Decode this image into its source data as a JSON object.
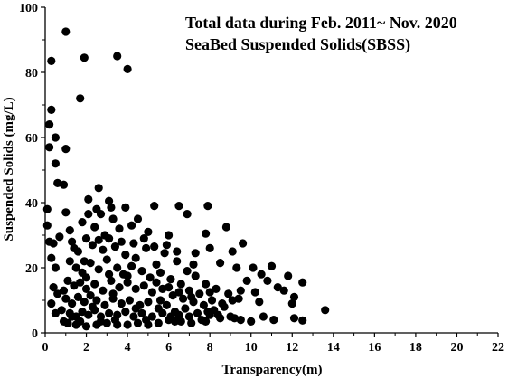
{
  "chart_data": {
    "type": "scatter",
    "annotations": [
      "Total data during Feb. 2011~ Nov. 2020",
      "SeaBed Suspended Solids(SBSS)"
    ],
    "xlabel": "Transparency(m)",
    "ylabel": "Suspended Solids (mg/L)",
    "xlim": [
      0,
      22
    ],
    "ylim": [
      0,
      100
    ],
    "xticks": [
      0,
      2,
      4,
      6,
      8,
      10,
      12,
      14,
      16,
      18,
      20,
      22
    ],
    "yticks": [
      0,
      20,
      40,
      60,
      80,
      100
    ],
    "grid": false,
    "marker_color": "#000000",
    "points": [
      [
        1.0,
        92.5
      ],
      [
        0.3,
        83.5
      ],
      [
        1.9,
        84.5
      ],
      [
        3.5,
        85.0
      ],
      [
        4.0,
        81.0
      ],
      [
        1.7,
        72.0
      ],
      [
        0.3,
        68.5
      ],
      [
        0.2,
        64.0
      ],
      [
        0.5,
        60.0
      ],
      [
        0.2,
        57.0
      ],
      [
        1.0,
        56.5
      ],
      [
        0.5,
        52.0
      ],
      [
        0.6,
        46.0
      ],
      [
        0.9,
        45.5
      ],
      [
        2.6,
        44.5
      ],
      [
        0.1,
        38.0
      ],
      [
        1.0,
        37.0
      ],
      [
        0.1,
        33.0
      ],
      [
        0.4,
        27.5
      ],
      [
        0.2,
        28.0
      ],
      [
        0.7,
        29.5
      ],
      [
        0.3,
        23.0
      ],
      [
        0.5,
        20.0
      ],
      [
        0.4,
        14.0
      ],
      [
        0.6,
        12.0
      ],
      [
        0.3,
        9.0
      ],
      [
        0.8,
        7.0
      ],
      [
        0.5,
        6.0
      ],
      [
        0.9,
        3.5
      ],
      [
        1.3,
        5.0
      ],
      [
        2.1,
        41.0
      ],
      [
        3.1,
        40.5
      ],
      [
        3.2,
        38.5
      ],
      [
        2.5,
        38.0
      ],
      [
        3.9,
        38.5
      ],
      [
        5.3,
        39.0
      ],
      [
        6.5,
        39.0
      ],
      [
        7.9,
        39.0
      ],
      [
        6.9,
        36.5
      ],
      [
        8.8,
        32.5
      ],
      [
        7.8,
        30.5
      ],
      [
        6.0,
        30.0
      ],
      [
        2.1,
        36.5
      ],
      [
        2.7,
        36.5
      ],
      [
        3.3,
        35.0
      ],
      [
        4.5,
        35.0
      ],
      [
        1.8,
        34.0
      ],
      [
        3.6,
        32.0
      ],
      [
        2.4,
        32.5
      ],
      [
        4.2,
        33.0
      ],
      [
        5.0,
        31.0
      ],
      [
        1.2,
        31.5
      ],
      [
        2.9,
        30.0
      ],
      [
        7.3,
        24.5
      ],
      [
        9.1,
        25.0
      ],
      [
        9.6,
        27.5
      ],
      [
        8.0,
        26.0
      ],
      [
        8.5,
        21.5
      ],
      [
        9.3,
        20.0
      ],
      [
        10.1,
        20.0
      ],
      [
        11.0,
        20.5
      ],
      [
        10.5,
        18.0
      ],
      [
        10.8,
        16.0
      ],
      [
        9.8,
        16.0
      ],
      [
        11.8,
        17.5
      ],
      [
        12.5,
        15.5
      ],
      [
        11.3,
        14.0
      ],
      [
        9.5,
        13.0
      ],
      [
        10.2,
        12.5
      ],
      [
        11.6,
        13.0
      ],
      [
        12.1,
        11.0
      ],
      [
        12.0,
        9.0
      ],
      [
        10.4,
        9.5
      ],
      [
        9.1,
        10.0
      ],
      [
        8.7,
        8.0
      ],
      [
        13.6,
        7.0
      ],
      [
        12.1,
        4.5
      ],
      [
        12.5,
        3.8
      ],
      [
        11.1,
        4.0
      ],
      [
        10.6,
        5.0
      ],
      [
        10.0,
        3.5
      ],
      [
        9.5,
        4.0
      ],
      [
        9.0,
        5.0
      ],
      [
        8.5,
        4.5
      ],
      [
        8.0,
        5.5
      ],
      [
        7.6,
        4.0
      ],
      [
        7.1,
        3.0
      ],
      [
        6.6,
        3.5
      ],
      [
        6.0,
        4.0
      ],
      [
        5.5,
        3.0
      ],
      [
        5.0,
        2.5
      ],
      [
        4.5,
        3.0
      ],
      [
        4.0,
        2.5
      ],
      [
        3.5,
        2.5
      ],
      [
        3.0,
        3.0
      ],
      [
        2.5,
        2.5
      ],
      [
        2.0,
        2.0
      ],
      [
        1.5,
        2.5
      ],
      [
        1.1,
        3.0
      ],
      [
        1.3,
        28.0
      ],
      [
        1.6,
        25.0
      ],
      [
        1.9,
        22.0
      ],
      [
        2.3,
        27.0
      ],
      [
        2.8,
        25.5
      ],
      [
        3.4,
        26.5
      ],
      [
        3.9,
        24.0
      ],
      [
        4.4,
        23.0
      ],
      [
        4.9,
        26.0
      ],
      [
        5.4,
        21.0
      ],
      [
        5.8,
        24.5
      ],
      [
        6.4,
        22.0
      ],
      [
        6.9,
        19.0
      ],
      [
        7.3,
        17.5
      ],
      [
        7.8,
        15.0
      ],
      [
        8.3,
        13.5
      ],
      [
        8.9,
        12.0
      ],
      [
        9.4,
        10.5
      ],
      [
        1.2,
        22.0
      ],
      [
        1.5,
        20.0
      ],
      [
        1.8,
        18.5
      ],
      [
        2.2,
        21.5
      ],
      [
        2.6,
        19.5
      ],
      [
        3.0,
        22.5
      ],
      [
        3.5,
        20.0
      ],
      [
        3.8,
        18.0
      ],
      [
        4.2,
        20.5
      ],
      [
        4.7,
        19.0
      ],
      [
        5.1,
        17.0
      ],
      [
        5.6,
        18.5
      ],
      [
        6.1,
        16.5
      ],
      [
        6.6,
        15.0
      ],
      [
        7.0,
        13.0
      ],
      [
        7.5,
        12.0
      ],
      [
        8.1,
        10.0
      ],
      [
        8.6,
        9.0
      ],
      [
        1.1,
        16.0
      ],
      [
        1.4,
        14.5
      ],
      [
        1.7,
        15.5
      ],
      [
        2.0,
        13.5
      ],
      [
        2.4,
        15.0
      ],
      [
        2.8,
        13.0
      ],
      [
        3.2,
        16.0
      ],
      [
        3.6,
        14.0
      ],
      [
        4.0,
        15.5
      ],
      [
        4.4,
        13.5
      ],
      [
        4.8,
        14.5
      ],
      [
        5.2,
        12.5
      ],
      [
        5.7,
        13.5
      ],
      [
        6.2,
        11.5
      ],
      [
        6.7,
        10.5
      ],
      [
        7.2,
        9.5
      ],
      [
        7.7,
        8.5
      ],
      [
        8.2,
        7.0
      ],
      [
        1.0,
        10.5
      ],
      [
        1.3,
        9.0
      ],
      [
        1.6,
        11.0
      ],
      [
        1.9,
        9.5
      ],
      [
        2.2,
        11.5
      ],
      [
        2.5,
        10.0
      ],
      [
        2.9,
        8.5
      ],
      [
        3.3,
        10.5
      ],
      [
        3.7,
        9.0
      ],
      [
        4.1,
        10.0
      ],
      [
        4.6,
        8.5
      ],
      [
        5.0,
        9.5
      ],
      [
        5.5,
        7.5
      ],
      [
        5.9,
        8.5
      ],
      [
        6.3,
        6.5
      ],
      [
        6.8,
        7.5
      ],
      [
        7.4,
        6.0
      ],
      [
        7.9,
        6.5
      ],
      [
        1.2,
        6.0
      ],
      [
        1.5,
        5.0
      ],
      [
        1.8,
        6.5
      ],
      [
        2.1,
        5.5
      ],
      [
        2.4,
        7.0
      ],
      [
        2.7,
        5.0
      ],
      [
        3.1,
        6.0
      ],
      [
        3.5,
        5.5
      ],
      [
        3.9,
        6.5
      ],
      [
        4.3,
        5.0
      ],
      [
        4.7,
        6.0
      ],
      [
        5.2,
        5.0
      ],
      [
        5.7,
        6.0
      ],
      [
        6.1,
        5.0
      ],
      [
        6.5,
        5.5
      ],
      [
        7.0,
        5.0
      ],
      [
        8.4,
        5.5
      ],
      [
        9.2,
        4.5
      ],
      [
        0.9,
        13.0
      ],
      [
        1.4,
        26.0
      ],
      [
        2.0,
        29.0
      ],
      [
        2.6,
        28.5
      ],
      [
        3.1,
        29.0
      ],
      [
        3.7,
        28.0
      ],
      [
        4.3,
        27.5
      ],
      [
        4.8,
        29.0
      ],
      [
        5.3,
        26.5
      ],
      [
        5.9,
        27.0
      ],
      [
        6.4,
        25.0
      ],
      [
        7.2,
        21.0
      ],
      [
        3.1,
        18.0
      ],
      [
        2.0,
        17.0
      ],
      [
        4.0,
        17.5
      ],
      [
        5.4,
        15.5
      ],
      [
        6.0,
        14.0
      ],
      [
        3.3,
        12.0
      ],
      [
        2.3,
        8.0
      ],
      [
        4.4,
        7.5
      ],
      [
        5.6,
        10.0
      ],
      [
        6.5,
        12.5
      ],
      [
        7.1,
        11.0
      ],
      [
        8.0,
        12.5
      ],
      [
        3.4,
        4.0
      ],
      [
        4.9,
        4.0
      ],
      [
        2.7,
        3.5
      ],
      [
        1.7,
        3.5
      ],
      [
        6.3,
        3.5
      ],
      [
        7.8,
        3.5
      ]
    ]
  }
}
